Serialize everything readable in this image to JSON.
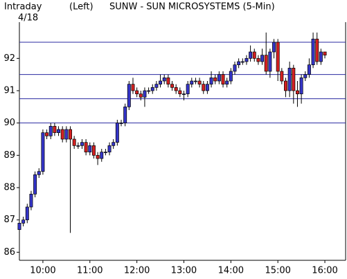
{
  "chart_data": {
    "type": "candlestick",
    "title": "SUNW - SUN MICROSYSTEMS (5-Min)",
    "label_left": "Intraday",
    "date": "4/18",
    "axis_label": "(Left)",
    "open": [
      86.7,
      86.9,
      87.0,
      87.4,
      87.8,
      88.4,
      88.5,
      89.7,
      89.6,
      89.9,
      89.7,
      89.8,
      89.5,
      89.8,
      89.5,
      89.3,
      89.3,
      89.4,
      89.1,
      89.3,
      89.0,
      88.9,
      89.1,
      89.1,
      89.3,
      89.4,
      90.0,
      90.0,
      90.5,
      91.2,
      91.0,
      90.9,
      90.8,
      91.0,
      91.0,
      91.1,
      91.2,
      91.3,
      91.4,
      91.2,
      91.1,
      91.0,
      90.9,
      90.9,
      91.2,
      91.3,
      91.3,
      91.2,
      91.0,
      91.2,
      91.4,
      91.3,
      91.5,
      91.2,
      91.3,
      91.6,
      91.8,
      91.9,
      91.9,
      92.0,
      92.2,
      92.0,
      91.9,
      92.1,
      91.6,
      92.2,
      92.5,
      91.6,
      91.3,
      91.0,
      91.7,
      91.0,
      90.9,
      91.4,
      91.5,
      91.8,
      92.6,
      91.9,
      92.2
    ],
    "high": [
      87.0,
      87.1,
      87.5,
      87.9,
      88.5,
      88.6,
      89.8,
      89.8,
      90.0,
      90.0,
      89.9,
      89.9,
      89.9,
      89.9,
      89.6,
      89.4,
      89.5,
      89.5,
      89.4,
      89.4,
      89.1,
      89.2,
      89.2,
      89.4,
      89.5,
      90.1,
      90.1,
      90.6,
      91.3,
      91.4,
      91.1,
      91.0,
      91.1,
      91.1,
      91.2,
      91.3,
      91.5,
      91.5,
      91.5,
      91.3,
      91.2,
      91.1,
      91.0,
      91.3,
      91.4,
      91.4,
      91.4,
      91.3,
      91.3,
      91.6,
      91.5,
      91.6,
      91.6,
      91.4,
      91.7,
      91.9,
      92.0,
      92.0,
      92.1,
      92.4,
      92.3,
      92.1,
      92.3,
      92.8,
      92.3,
      92.6,
      92.6,
      91.7,
      91.4,
      91.9,
      91.8,
      91.3,
      91.5,
      91.6,
      92.0,
      92.8,
      92.8,
      92.3,
      92.2
    ],
    "low": [
      86.3,
      86.8,
      86.9,
      87.3,
      87.7,
      88.3,
      88.4,
      89.5,
      89.5,
      89.6,
      89.6,
      89.4,
      89.4,
      86.6,
      89.2,
      89.2,
      89.2,
      89.0,
      89.0,
      88.9,
      88.7,
      88.8,
      89.0,
      89.0,
      89.2,
      89.3,
      89.9,
      89.9,
      90.4,
      90.9,
      90.8,
      90.7,
      90.5,
      90.9,
      90.9,
      91.0,
      91.1,
      91.2,
      91.1,
      91.0,
      90.9,
      90.8,
      90.7,
      90.8,
      91.1,
      91.2,
      91.1,
      90.9,
      90.9,
      91.1,
      91.2,
      91.2,
      91.1,
      91.1,
      91.2,
      91.5,
      91.7,
      91.8,
      91.8,
      91.9,
      91.9,
      91.8,
      91.8,
      91.5,
      91.4,
      92.0,
      91.3,
      91.2,
      90.8,
      90.8,
      90.6,
      90.5,
      90.6,
      91.3,
      91.4,
      91.7,
      91.8,
      91.8,
      92.0
    ],
    "close": [
      86.9,
      87.0,
      87.4,
      87.8,
      88.4,
      88.5,
      89.7,
      89.6,
      89.9,
      89.7,
      89.8,
      89.5,
      89.8,
      89.5,
      89.3,
      89.3,
      89.4,
      89.1,
      89.3,
      89.0,
      88.9,
      89.1,
      89.1,
      89.3,
      89.4,
      90.0,
      90.0,
      90.5,
      91.2,
      91.0,
      90.9,
      90.8,
      91.0,
      91.0,
      91.1,
      91.2,
      91.3,
      91.4,
      91.2,
      91.1,
      91.0,
      90.9,
      90.9,
      91.2,
      91.3,
      91.3,
      91.2,
      91.0,
      91.2,
      91.4,
      91.3,
      91.5,
      91.2,
      91.3,
      91.6,
      91.8,
      91.9,
      91.9,
      92.0,
      92.2,
      92.0,
      91.9,
      92.1,
      91.6,
      92.2,
      92.5,
      91.6,
      91.3,
      91.0,
      91.7,
      91.0,
      90.9,
      91.4,
      91.5,
      91.8,
      92.6,
      91.9,
      92.2,
      92.1
    ],
    "up_color": "#3535c8",
    "down_color": "#d42020",
    "reference_lines": [
      92.5,
      91.5,
      90.75,
      90
    ],
    "reference_color": "#2a2aa0",
    "xlim": [
      0,
      83.3
    ],
    "xticks": [
      {
        "value": 6,
        "label": "10:00"
      },
      {
        "value": 18,
        "label": "11:00"
      },
      {
        "value": 30,
        "label": "12:00"
      },
      {
        "value": 42,
        "label": "13:00"
      },
      {
        "value": 54,
        "label": "14:00"
      },
      {
        "value": 66,
        "label": "15:00"
      },
      {
        "value": 78,
        "label": "16:00"
      }
    ],
    "ylim": [
      85.75,
      92.95
    ],
    "yticks": [
      86,
      87,
      88,
      89,
      90,
      91,
      92
    ]
  }
}
